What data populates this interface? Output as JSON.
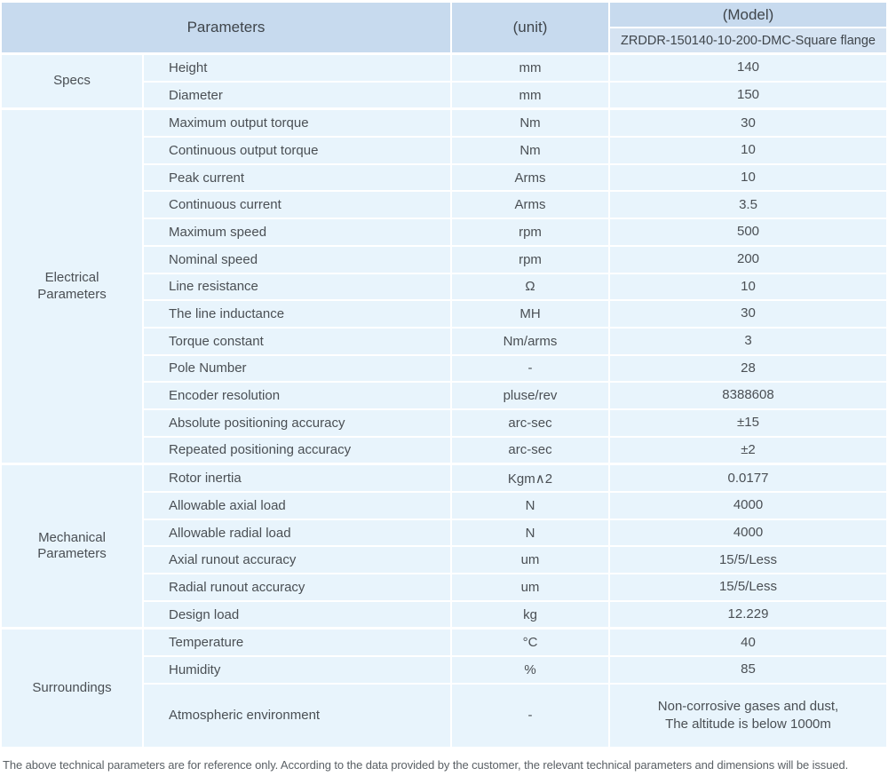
{
  "colors": {
    "header_bg": "#c7daee",
    "model_row_bg": "#d5e3f2",
    "cell_bg": "#e8f4fc",
    "header_text": "#3f454b",
    "text": "#4a4f54",
    "footer_text": "#5a6065"
  },
  "header": {
    "parameters_label": "Parameters",
    "unit_label": "(unit)",
    "model_label": "(Model)",
    "model_value": "ZRDDR-150140-10-200-DMC-Square flange"
  },
  "sections": [
    {
      "group": "Specs",
      "rows": [
        {
          "name": "Height",
          "unit": "mm",
          "value": "140"
        },
        {
          "name": "Diameter",
          "unit": "mm",
          "value": "150"
        }
      ]
    },
    {
      "group": "Electrical\nParameters",
      "rows": [
        {
          "name": "Maximum output torque",
          "unit": "Nm",
          "value": "30"
        },
        {
          "name": "Continuous output torque",
          "unit": "Nm",
          "value": "10"
        },
        {
          "name": "Peak current",
          "unit": "Arms",
          "value": "10"
        },
        {
          "name": "Continuous current",
          "unit": "Arms",
          "value": "3.5"
        },
        {
          "name": "Maximum speed",
          "unit": "rpm",
          "value": "500"
        },
        {
          "name": "Nominal speed",
          "unit": "rpm",
          "value": "200"
        },
        {
          "name": "Line resistance",
          "unit": "Ω",
          "value": "10"
        },
        {
          "name": "The line inductance",
          "unit": "MH",
          "value": "30"
        },
        {
          "name": "Torque constant",
          "unit": "Nm/arms",
          "value": "3"
        },
        {
          "name": "Pole Number",
          "unit": "-",
          "value": "28"
        },
        {
          "name": "Encoder resolution",
          "unit": "pluse/rev",
          "value": "8388608"
        },
        {
          "name": "Absolute positioning accuracy",
          "unit": "arc-sec",
          "value": "±15"
        },
        {
          "name": "Repeated positioning accuracy",
          "unit": "arc-sec",
          "value": "±2"
        }
      ]
    },
    {
      "group": "Mechanical\nParameters",
      "rows": [
        {
          "name": "Rotor inertia",
          "unit": "Kgm∧2",
          "value": "0.0177"
        },
        {
          "name": "Allowable axial load",
          "unit": "N",
          "value": "4000"
        },
        {
          "name": "Allowable radial load",
          "unit": "N",
          "value": "4000"
        },
        {
          "name": "Axial runout accuracy",
          "unit": "um",
          "value": "15/5/Less"
        },
        {
          "name": "Radial runout accuracy",
          "unit": "um",
          "value": "15/5/Less"
        },
        {
          "name": "Design load",
          "unit": "kg",
          "value": "12.229"
        }
      ]
    },
    {
      "group": "Surroundings",
      "rows": [
        {
          "name": "Temperature",
          "unit": "°C",
          "value": "40"
        },
        {
          "name": "Humidity",
          "unit": "%",
          "value": "85"
        },
        {
          "name": "Atmospheric environment",
          "unit": "-",
          "value": "Non-corrosive gases and dust,\nThe altitude is below 1000m"
        }
      ]
    }
  ],
  "footer": {
    "note": "The above technical parameters are for reference only. According to the data provided by the customer, the relevant technical parameters and dimensions will be issued."
  }
}
